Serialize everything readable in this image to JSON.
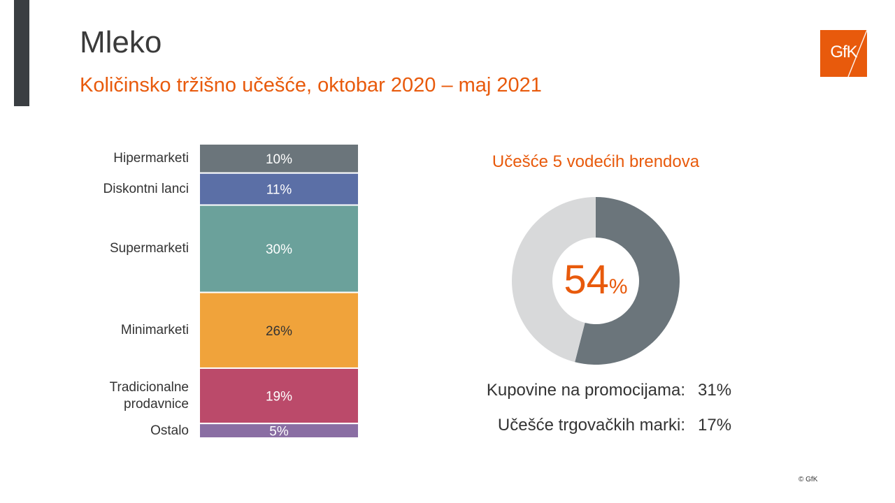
{
  "header": {
    "title": "Mleko",
    "subtitle": "Količinsko tržišno učešće, oktobar 2020 – maj 2021",
    "logo_text": "GfK"
  },
  "colors": {
    "accent": "#e85a0c",
    "dark_bar": "#3a3e42"
  },
  "chart_data": [
    {
      "type": "bar",
      "orientation": "stacked-vertical",
      "categories": [
        "Hipermarketi",
        "Diskontni lanci",
        "Supermarketi",
        "Minimarketi",
        "Tradicionalne prodavnice",
        "Ostalo"
      ],
      "category_lines": [
        [
          "Hipermarketi"
        ],
        [
          "Diskontni lanci"
        ],
        [
          "Supermarketi"
        ],
        [
          "Minimarketi"
        ],
        [
          "Tradicionalne",
          "prodavnice"
        ],
        [
          "Ostalo"
        ]
      ],
      "values": [
        10,
        11,
        30,
        26,
        19,
        5
      ],
      "data_labels": [
        "10%",
        "11%",
        "30%",
        "26%",
        "19%",
        "5%"
      ],
      "colors": [
        "#6b757b",
        "#5b6fa6",
        "#6ba19b",
        "#f0a33b",
        "#bb4a6a",
        "#8a6ea3"
      ],
      "label_colors": [
        "#ffffff",
        "#ffffff",
        "#ffffff",
        "#333333",
        "#ffffff",
        "#ffffff"
      ]
    },
    {
      "type": "pie",
      "variant": "donut",
      "title": "Učešće 5 vodećih brendova",
      "values": [
        54,
        46
      ],
      "colors": [
        "#6b757b",
        "#d8d9da"
      ],
      "center_value": "54",
      "center_unit": "%"
    }
  ],
  "stats": [
    {
      "label": "Kupovine na promocijama:",
      "value": "31%"
    },
    {
      "label": "Učešće trgovačkih marki:",
      "value": "17%"
    }
  ],
  "footer": {
    "copyright": "© GfK"
  }
}
